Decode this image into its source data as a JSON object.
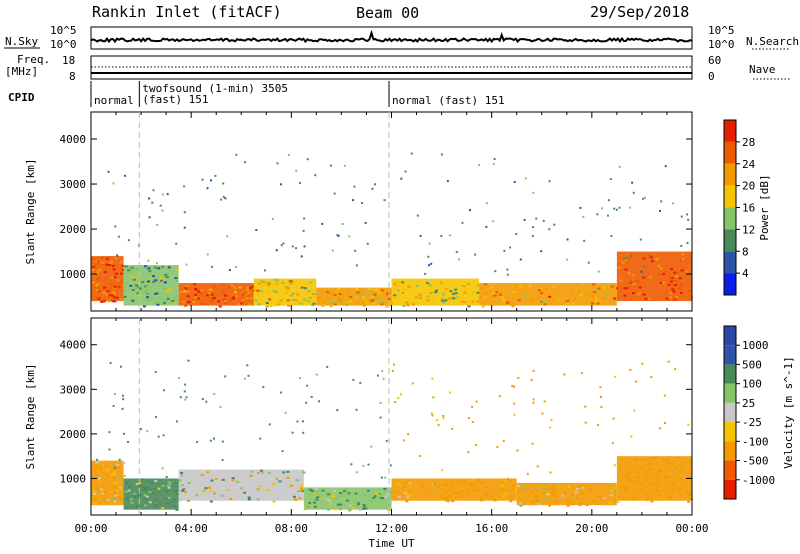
{
  "header": {
    "station": "Rankin Inlet (fitACF)",
    "beam": "Beam 00",
    "date": "29/Sep/2018"
  },
  "panels": {
    "nsky": {
      "label": "N.Sky",
      "left_ticks": [
        "10^5",
        "10^0"
      ],
      "right_ticks": [
        "10^5",
        "10^0"
      ],
      "right_label": "N.Search"
    },
    "freq": {
      "label_top": "Freq.",
      "label_bottom": "[MHz]",
      "left_ticks": [
        "18",
        "8"
      ],
      "right_ticks": [
        "60",
        "0"
      ],
      "right_label": "Nave"
    },
    "cpid": {
      "label": "CPID",
      "segments": [
        {
          "text": "normal",
          "start_hour": 0.0
        },
        {
          "text": "twofsound (1-min) 3505",
          "text2": "(fast) 151",
          "start_hour": 1.93
        },
        {
          "text": "normal (fast) 151",
          "start_hour": 11.9
        }
      ]
    }
  },
  "colors": {
    "power": [
      "#0b1ee6",
      "#2d54a8",
      "#4a8a5a",
      "#86c46a",
      "#f5c400",
      "#f39a00",
      "#ee5a00",
      "#e61f00"
    ],
    "velocity": [
      "#e61f00",
      "#f05a00",
      "#f39a00",
      "#f5c400",
      "#c7c7c7",
      "#86c46a",
      "#4a8a5a",
      "#2d54a8",
      "#2b49a4"
    ]
  },
  "chart_data": [
    {
      "type": "heatmap",
      "panel": "power",
      "xlabel": "",
      "ylabel": "Slant Range [km]",
      "x_range_hours": [
        0,
        24
      ],
      "ylim": [
        180,
        4600
      ],
      "yticks": [
        1000,
        2000,
        3000,
        4000
      ],
      "colorbar": {
        "label": "Power [dB]",
        "ticks": [
          4,
          8,
          12,
          16,
          20,
          24,
          28
        ],
        "range": [
          0,
          32
        ]
      },
      "bands": [
        {
          "start": 0.0,
          "end": 1.3,
          "min_range": 400,
          "max_range": 1400,
          "value": 27
        },
        {
          "start": 1.3,
          "end": 3.5,
          "min_range": 300,
          "max_range": 1200,
          "value": 12
        },
        {
          "start": 3.5,
          "end": 6.5,
          "min_range": 300,
          "max_range": 800,
          "value": 26
        },
        {
          "start": 6.5,
          "end": 9.0,
          "min_range": 300,
          "max_range": 900,
          "value": 18
        },
        {
          "start": 9.0,
          "end": 12.0,
          "min_range": 300,
          "max_range": 700,
          "value": 20
        },
        {
          "start": 12.0,
          "end": 15.5,
          "min_range": 300,
          "max_range": 900,
          "value": 17
        },
        {
          "start": 15.5,
          "end": 21.0,
          "min_range": 300,
          "max_range": 800,
          "value": 22
        },
        {
          "start": 21.0,
          "end": 24.0,
          "min_range": 400,
          "max_range": 1500,
          "value": 27
        }
      ]
    },
    {
      "type": "heatmap",
      "panel": "velocity",
      "xlabel": "Time UT",
      "ylabel": "Slant Range [km]",
      "x_range_hours": [
        0,
        24
      ],
      "xticks": [
        "00:00",
        "04:00",
        "08:00",
        "12:00",
        "16:00",
        "20:00",
        "00:00"
      ],
      "ylim": [
        180,
        4600
      ],
      "yticks": [
        1000,
        2000,
        3000,
        4000
      ],
      "colorbar": {
        "label": "Velocity [m s^-1]",
        "ticks": [
          "1000",
          "500",
          "100",
          "25",
          "-25",
          "-100",
          "-500",
          "-1000"
        ]
      },
      "bands": [
        {
          "start": 0.0,
          "end": 1.3,
          "min_range": 400,
          "max_range": 1400,
          "value": -150
        },
        {
          "start": 1.3,
          "end": 3.5,
          "min_range": 300,
          "max_range": 1000,
          "value": 150
        },
        {
          "start": 3.5,
          "end": 8.5,
          "min_range": 500,
          "max_range": 1200,
          "value": 0
        },
        {
          "start": 8.5,
          "end": 12.0,
          "min_range": 300,
          "max_range": 800,
          "value": 100
        },
        {
          "start": 12.0,
          "end": 17.0,
          "min_range": 500,
          "max_range": 1000,
          "value": -200
        },
        {
          "start": 17.0,
          "end": 21.0,
          "min_range": 400,
          "max_range": 900,
          "value": -120
        },
        {
          "start": 21.0,
          "end": 24.0,
          "min_range": 500,
          "max_range": 1500,
          "value": -300
        }
      ]
    }
  ]
}
